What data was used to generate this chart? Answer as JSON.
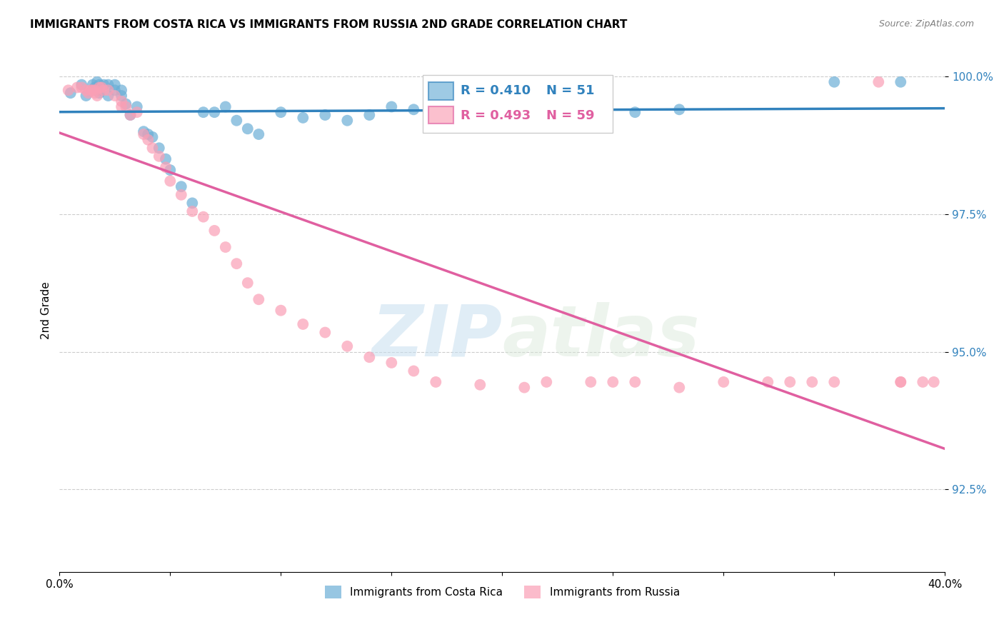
{
  "title": "IMMIGRANTS FROM COSTA RICA VS IMMIGRANTS FROM RUSSIA 2ND GRADE CORRELATION CHART",
  "source": "Source: ZipAtlas.com",
  "ylabel": "2nd Grade",
  "xlim": [
    0.0,
    0.4
  ],
  "ylim": [
    0.91,
    1.005
  ],
  "ytick_labels": [
    "100.0%",
    "97.5%",
    "95.0%",
    "92.5%"
  ],
  "ytick_values": [
    1.0,
    0.975,
    0.95,
    0.925
  ],
  "legend_r1": "R = 0.410",
  "legend_n1": "N = 51",
  "legend_r2": "R = 0.493",
  "legend_n2": "N = 59",
  "color_blue": "#6baed6",
  "color_pink": "#fa9fb5",
  "line_color_blue": "#3182bd",
  "line_color_pink": "#e05fa0",
  "watermark_zip": "ZIP",
  "watermark_atlas": "atlas",
  "blue_x": [
    0.005,
    0.01,
    0.012,
    0.015,
    0.015,
    0.016,
    0.017,
    0.018,
    0.018,
    0.018,
    0.02,
    0.022,
    0.022,
    0.025,
    0.025,
    0.028,
    0.028,
    0.03,
    0.032,
    0.035,
    0.038,
    0.04,
    0.042,
    0.045,
    0.048,
    0.05,
    0.055,
    0.06,
    0.065,
    0.07,
    0.075,
    0.08,
    0.085,
    0.09,
    0.1,
    0.11,
    0.12,
    0.13,
    0.14,
    0.15,
    0.16,
    0.17,
    0.19,
    0.21,
    0.22,
    0.23,
    0.245,
    0.26,
    0.28,
    0.35,
    0.38
  ],
  "blue_y": [
    0.997,
    0.9985,
    0.9965,
    0.9985,
    0.9975,
    0.998,
    0.999,
    0.9985,
    0.997,
    0.9975,
    0.9985,
    0.9985,
    0.9965,
    0.9985,
    0.9975,
    0.9975,
    0.9965,
    0.995,
    0.993,
    0.9945,
    0.99,
    0.9895,
    0.989,
    0.987,
    0.985,
    0.983,
    0.98,
    0.977,
    0.9935,
    0.9935,
    0.9945,
    0.992,
    0.9905,
    0.9895,
    0.9935,
    0.9925,
    0.993,
    0.992,
    0.993,
    0.9945,
    0.994,
    0.9935,
    0.994,
    0.994,
    0.993,
    0.994,
    0.9945,
    0.9935,
    0.994,
    0.999,
    0.999
  ],
  "pink_x": [
    0.004,
    0.008,
    0.01,
    0.012,
    0.013,
    0.014,
    0.015,
    0.016,
    0.016,
    0.017,
    0.018,
    0.019,
    0.02,
    0.022,
    0.025,
    0.028,
    0.028,
    0.03,
    0.032,
    0.035,
    0.038,
    0.04,
    0.042,
    0.045,
    0.048,
    0.05,
    0.055,
    0.06,
    0.065,
    0.07,
    0.075,
    0.08,
    0.085,
    0.09,
    0.1,
    0.11,
    0.12,
    0.13,
    0.14,
    0.15,
    0.16,
    0.17,
    0.19,
    0.21,
    0.22,
    0.24,
    0.25,
    0.26,
    0.28,
    0.3,
    0.32,
    0.33,
    0.34,
    0.35,
    0.37,
    0.38,
    0.39,
    0.395,
    0.38
  ],
  "pink_y": [
    0.9975,
    0.998,
    0.998,
    0.9975,
    0.997,
    0.9975,
    0.9975,
    0.9975,
    0.997,
    0.9965,
    0.998,
    0.998,
    0.9975,
    0.9975,
    0.9965,
    0.9955,
    0.9945,
    0.9945,
    0.993,
    0.9935,
    0.9895,
    0.9885,
    0.987,
    0.9855,
    0.9835,
    0.981,
    0.9785,
    0.9755,
    0.9745,
    0.972,
    0.969,
    0.966,
    0.9625,
    0.9595,
    0.9575,
    0.955,
    0.9535,
    0.951,
    0.949,
    0.948,
    0.9465,
    0.9445,
    0.944,
    0.9435,
    0.9445,
    0.9445,
    0.9445,
    0.9445,
    0.9435,
    0.9445,
    0.9445,
    0.9445,
    0.9445,
    0.9445,
    0.999,
    0.9445,
    0.9445,
    0.9445,
    0.9445
  ]
}
